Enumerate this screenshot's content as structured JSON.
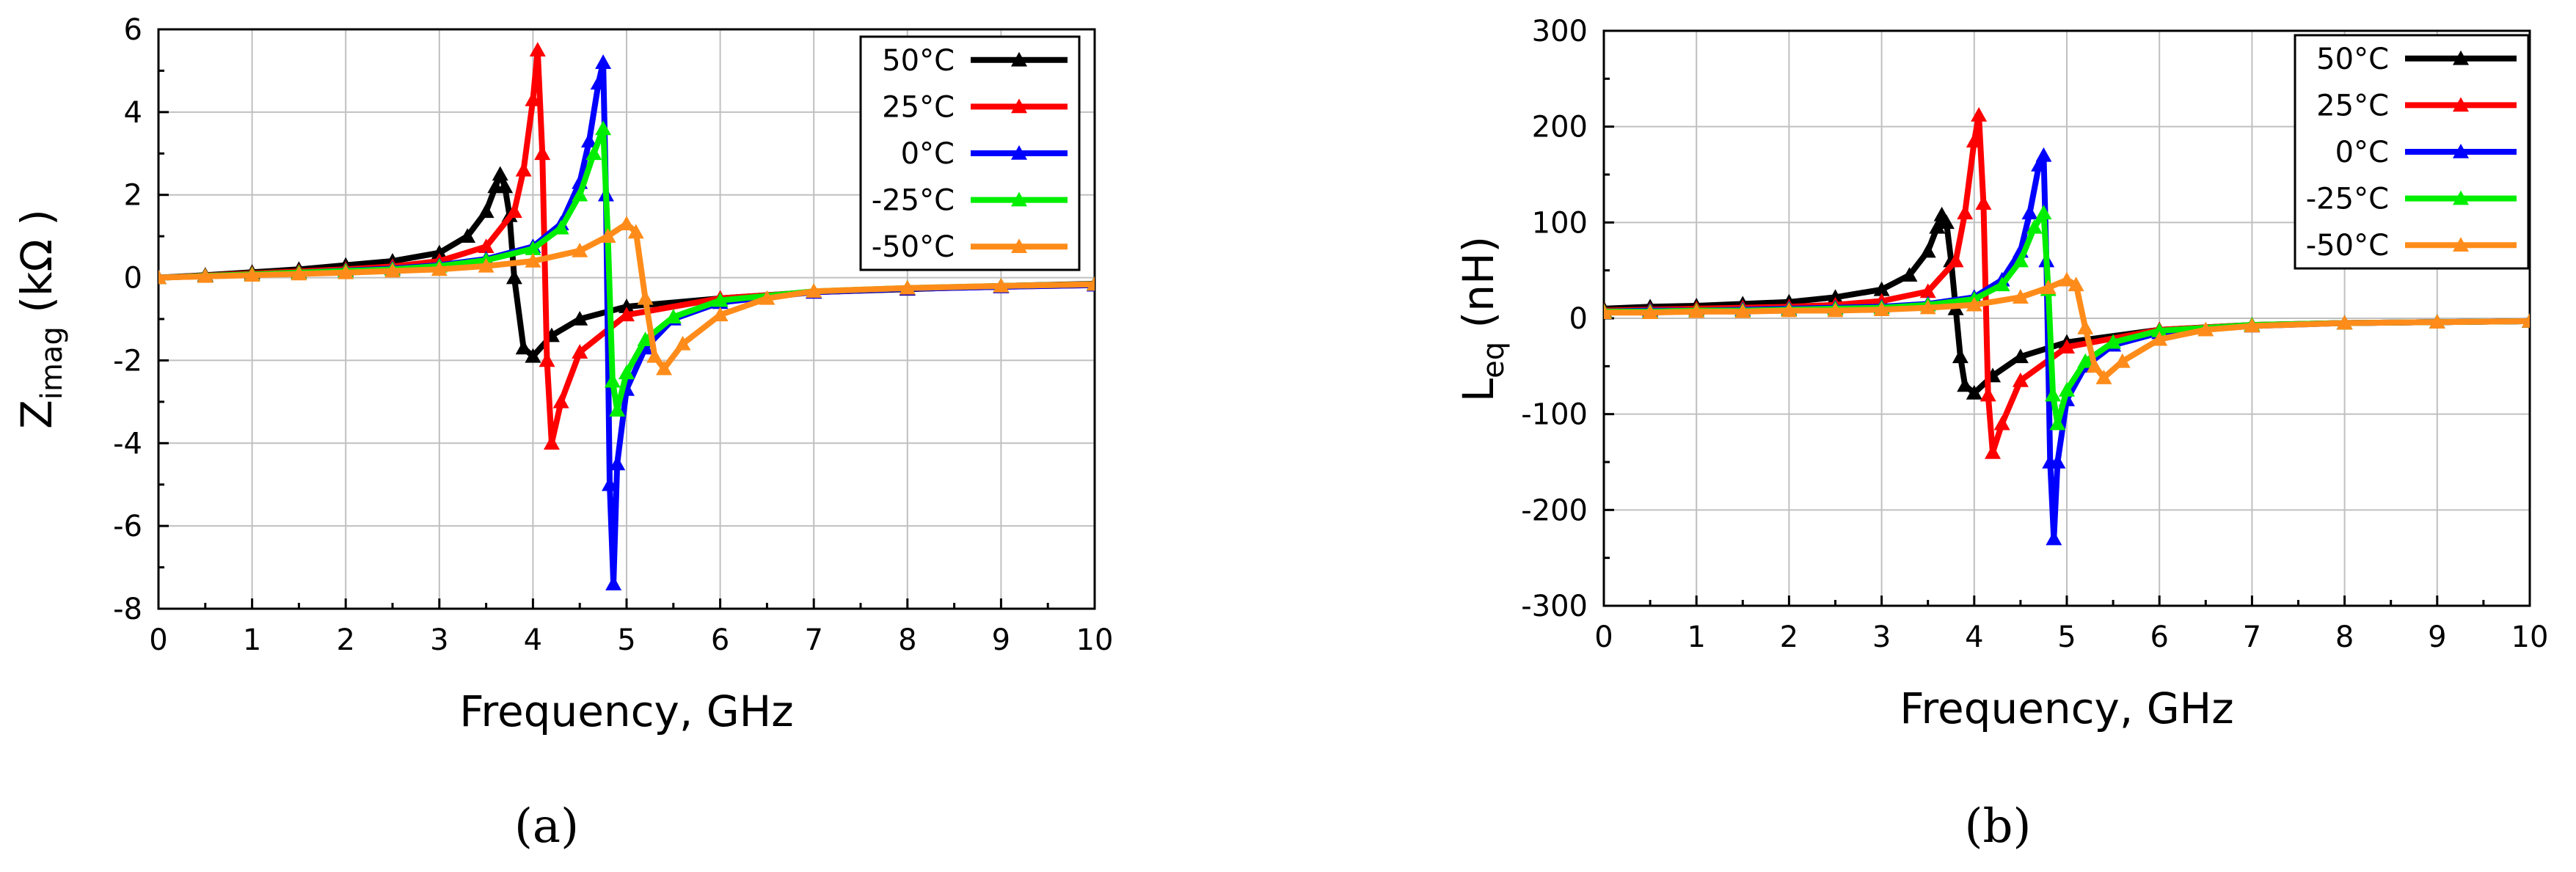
{
  "colors": {
    "50": "#000000",
    "25": "#ff0000",
    "0": "#0000ff",
    "-25": "#00ee00",
    "-50": "#ff8c1a"
  },
  "panel_labels": [
    "(a)",
    "(b)"
  ],
  "chart_data": [
    {
      "type": "line",
      "panel": "(a)",
      "title": "",
      "xlabel": "Frequency, GHz",
      "ylabel": "Zimag (kΩ )",
      "ylabel_main": "Z",
      "ylabel_sub": "imag",
      "ylabel_rest": " (kΩ )",
      "xlim": [
        0,
        10
      ],
      "ylim": [
        -8,
        6
      ],
      "xticks": [
        "0",
        "1",
        "2",
        "3",
        "4",
        "5",
        "6",
        "7",
        "8",
        "9",
        "10"
      ],
      "yticks": [
        "6",
        "4",
        "2",
        "0",
        "-2",
        "-4",
        "-6",
        "-8"
      ],
      "grid": true,
      "legend_position": "top-right",
      "series": [
        {
          "name": "50°C",
          "key": "50",
          "x": [
            0,
            0.5,
            1,
            1.5,
            2,
            2.5,
            3,
            3.3,
            3.5,
            3.6,
            3.65,
            3.7,
            3.75,
            3.8,
            3.9,
            4.0,
            4.2,
            4.5,
            5.0,
            6.0,
            7.0,
            8.0,
            9.0,
            10.0
          ],
          "y": [
            0,
            0.06,
            0.13,
            0.2,
            0.3,
            0.4,
            0.6,
            1.0,
            1.6,
            2.2,
            2.5,
            2.2,
            1.5,
            0,
            -1.7,
            -1.9,
            -1.4,
            -1.0,
            -0.7,
            -0.5,
            -0.35,
            -0.28,
            -0.2,
            -0.15
          ]
        },
        {
          "name": "25°C",
          "key": "25",
          "x": [
            0,
            0.5,
            1,
            1.5,
            2,
            2.5,
            3,
            3.5,
            3.8,
            3.9,
            4.0,
            4.05,
            4.1,
            4.15,
            4.2,
            4.3,
            4.5,
            5.0,
            6.0,
            7.0,
            8.0,
            9.0,
            10.0
          ],
          "y": [
            0,
            0.05,
            0.1,
            0.15,
            0.2,
            0.27,
            0.4,
            0.75,
            1.6,
            2.6,
            4.3,
            5.5,
            3.0,
            -2.0,
            -4.0,
            -3.0,
            -1.8,
            -0.9,
            -0.5,
            -0.35,
            -0.27,
            -0.22,
            -0.18
          ]
        },
        {
          "name": "0°C",
          "key": "0",
          "x": [
            0,
            0.5,
            1,
            1.5,
            2,
            2.5,
            3,
            3.5,
            4.0,
            4.3,
            4.5,
            4.6,
            4.7,
            4.75,
            4.78,
            4.82,
            4.86,
            4.9,
            5.0,
            5.2,
            5.5,
            6.0,
            7.0,
            8.0,
            9.0,
            10.0
          ],
          "y": [
            0,
            0.04,
            0.08,
            0.12,
            0.17,
            0.22,
            0.3,
            0.45,
            0.75,
            1.3,
            2.3,
            3.3,
            4.7,
            5.2,
            2.0,
            -5.0,
            -7.4,
            -4.5,
            -2.7,
            -1.7,
            -1.0,
            -0.6,
            -0.35,
            -0.27,
            -0.22,
            -0.18
          ]
        },
        {
          "name": "-25°C",
          "key": "-25",
          "x": [
            0,
            0.5,
            1,
            1.5,
            2,
            2.5,
            3,
            3.5,
            4.0,
            4.3,
            4.5,
            4.65,
            4.75,
            4.8,
            4.85,
            4.9,
            5.0,
            5.2,
            5.5,
            6.0,
            7.0,
            8.0,
            9.0,
            10.0
          ],
          "y": [
            0,
            0.04,
            0.08,
            0.12,
            0.16,
            0.2,
            0.28,
            0.42,
            0.7,
            1.2,
            2.0,
            3.0,
            3.6,
            1.0,
            -2.5,
            -3.2,
            -2.3,
            -1.5,
            -0.95,
            -0.55,
            -0.33,
            -0.25,
            -0.2,
            -0.16
          ]
        },
        {
          "name": "-50°C",
          "key": "-50",
          "x": [
            0,
            0.5,
            1,
            1.5,
            2,
            2.5,
            3,
            3.5,
            4.0,
            4.5,
            4.8,
            5.0,
            5.1,
            5.2,
            5.3,
            5.4,
            5.6,
            6.0,
            6.5,
            7.0,
            8.0,
            9.0,
            10.0
          ],
          "y": [
            0,
            0.03,
            0.06,
            0.09,
            0.12,
            0.16,
            0.2,
            0.28,
            0.4,
            0.65,
            1.0,
            1.3,
            1.1,
            -0.5,
            -1.9,
            -2.2,
            -1.6,
            -0.9,
            -0.5,
            -0.33,
            -0.25,
            -0.2,
            -0.16
          ]
        }
      ]
    },
    {
      "type": "line",
      "panel": "(b)",
      "title": "",
      "xlabel": "Frequency, GHz",
      "ylabel": "Leq (nH)",
      "ylabel_main": "L",
      "ylabel_sub": "eq",
      "ylabel_rest": " (nH)",
      "xlim": [
        0,
        10
      ],
      "ylim": [
        -300,
        300
      ],
      "xticks": [
        "0",
        "1",
        "2",
        "3",
        "4",
        "5",
        "6",
        "7",
        "8",
        "9",
        "10"
      ],
      "yticks": [
        "300",
        "200",
        "100",
        "0",
        "-100",
        "-200",
        "-300"
      ],
      "grid": true,
      "legend_position": "top-right",
      "series": [
        {
          "name": "50°C",
          "key": "50",
          "x": [
            0,
            0.5,
            1,
            1.5,
            2,
            2.5,
            3,
            3.3,
            3.5,
            3.6,
            3.65,
            3.7,
            3.75,
            3.8,
            3.85,
            3.9,
            4.0,
            4.2,
            4.5,
            5.0,
            6.0,
            7.0,
            8.0,
            9.0,
            10.0
          ],
          "y": [
            10,
            12,
            13,
            15,
            17,
            22,
            30,
            45,
            70,
            95,
            108,
            100,
            60,
            10,
            -40,
            -70,
            -78,
            -60,
            -40,
            -25,
            -12,
            -7,
            -5,
            -4,
            -3
          ]
        },
        {
          "name": "25°C",
          "key": "25",
          "x": [
            0,
            0.5,
            1,
            1.5,
            2,
            2.5,
            3,
            3.5,
            3.8,
            3.9,
            4.0,
            4.05,
            4.1,
            4.15,
            4.2,
            4.3,
            4.5,
            5.0,
            6.0,
            7.0,
            8.0,
            9.0,
            10.0
          ],
          "y": [
            8,
            9,
            10,
            11,
            12,
            14,
            18,
            28,
            60,
            110,
            185,
            212,
            120,
            -80,
            -140,
            -110,
            -65,
            -30,
            -12,
            -7,
            -5,
            -4,
            -3
          ]
        },
        {
          "name": "0°C",
          "key": "0",
          "x": [
            0,
            0.5,
            1,
            1.5,
            2,
            2.5,
            3,
            3.5,
            4.0,
            4.3,
            4.5,
            4.6,
            4.7,
            4.75,
            4.78,
            4.82,
            4.86,
            4.9,
            5.0,
            5.2,
            5.5,
            6.0,
            7.0,
            8.0,
            9.0,
            10.0
          ],
          "y": [
            7,
            8,
            8,
            9,
            10,
            11,
            12,
            15,
            22,
            40,
            70,
            110,
            160,
            170,
            60,
            -150,
            -230,
            -150,
            -85,
            -50,
            -28,
            -15,
            -8,
            -5,
            -4,
            -3
          ]
        },
        {
          "name": "-25°C",
          "key": "-25",
          "x": [
            0,
            0.5,
            1,
            1.5,
            2,
            2.5,
            3,
            3.5,
            4.0,
            4.3,
            4.5,
            4.65,
            4.75,
            4.8,
            4.85,
            4.9,
            5.0,
            5.2,
            5.5,
            6.0,
            7.0,
            8.0,
            9.0,
            10.0
          ],
          "y": [
            7,
            7,
            8,
            8,
            9,
            10,
            11,
            14,
            20,
            35,
            60,
            95,
            110,
            30,
            -80,
            -110,
            -75,
            -45,
            -25,
            -13,
            -7,
            -5,
            -4,
            -3
          ]
        },
        {
          "name": "-50°C",
          "key": "-50",
          "x": [
            0,
            0.5,
            1,
            1.5,
            2,
            2.5,
            3,
            3.5,
            4.0,
            4.5,
            4.8,
            5.0,
            5.1,
            5.2,
            5.3,
            5.4,
            5.6,
            6.0,
            6.5,
            7.0,
            8.0,
            9.0,
            10.0
          ],
          "y": [
            6,
            6,
            7,
            7,
            8,
            8,
            9,
            11,
            14,
            22,
            32,
            40,
            35,
            -10,
            -50,
            -62,
            -45,
            -22,
            -12,
            -8,
            -5,
            -4,
            -3
          ]
        }
      ]
    }
  ]
}
